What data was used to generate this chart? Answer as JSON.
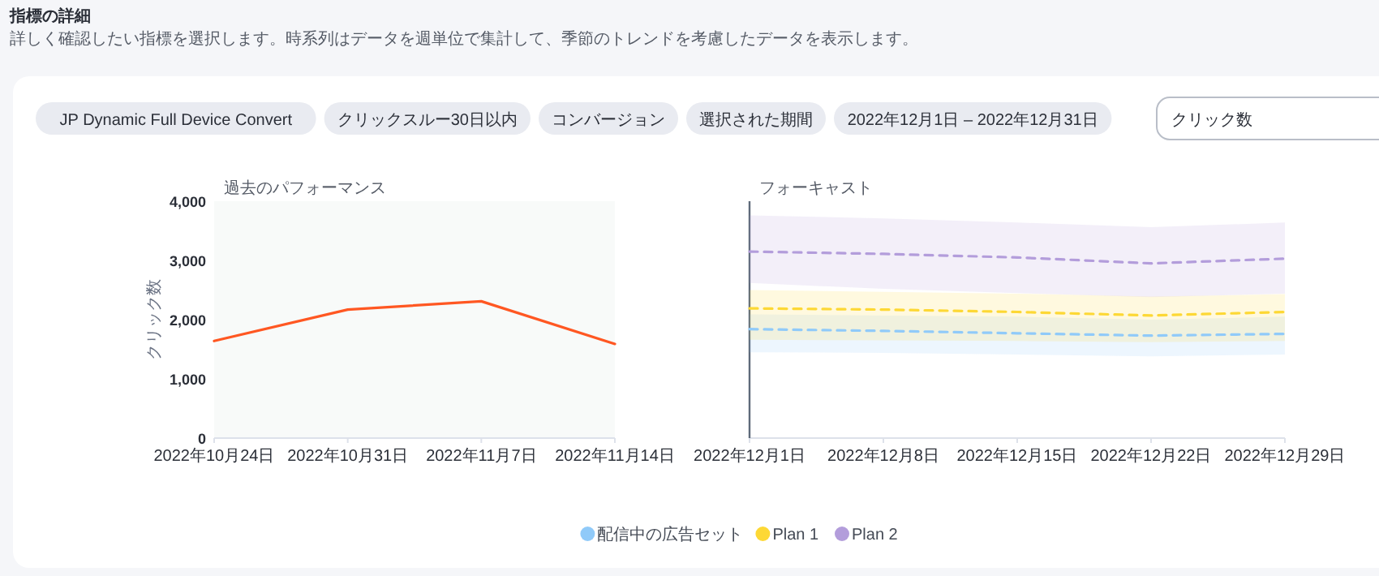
{
  "chart_data": [
    {
      "type": "other",
      "title": "指標の詳細",
      "subtitle": "詳しく確認したい指標を選択します。時系列はデータを週単位で集計して、季節のトレンドを考慮したデータを表示します。",
      "annotations": [
        "JP Dynamic Full Device Convert",
        "クリックスルー30日以内",
        "コンバージョン",
        "選択された期間",
        "2022年12月1日 – 2022年12月31日",
        "クリック数"
      ]
    },
    {
      "type": "line",
      "title": "過去のパフォーマンス",
      "ylabel": "クリック数",
      "x": [
        "2022-10-24",
        "2022-10-31",
        "2022-11-07",
        "2022-11-14"
      ],
      "series": [
        {
          "color": "#ff5722",
          "values": [
            1640,
            2170,
            2310,
            1590
          ]
        }
      ],
      "xlim": [
        "2022-10-24",
        "2022-11-14"
      ],
      "xticks": [
        {
          "value": "2022-10-24",
          "label": "2022年10月24日"
        },
        {
          "value": "2022-10-31",
          "label": "2022年10月31日"
        },
        {
          "value": "2022-11-07",
          "label": "2022年11月7日"
        },
        {
          "value": "2022-11-14",
          "label": "2022年11月14日"
        }
      ],
      "ylim": [
        0,
        4000
      ],
      "yticks": [
        0,
        {
          "value": 1000,
          "label": "1,000"
        },
        {
          "value": 2000,
          "label": "2,000"
        },
        {
          "value": 3000,
          "label": "3,000"
        },
        {
          "value": 4000,
          "label": "4,000"
        }
      ],
      "line_style": "solid",
      "grid": false,
      "legend": false
    },
    {
      "type": "line",
      "title": "フォーキャスト",
      "x": [
        "2022-12-01",
        "2022-12-08",
        "2022-12-15",
        "2022-12-22",
        "2022-12-29"
      ],
      "series": [
        {
          "name": "配信中の広告セット",
          "color": "#90caf9",
          "values": [
            1840,
            1810,
            1770,
            1730,
            1760
          ],
          "lower": [
            1450,
            1440,
            1410,
            1380,
            1410
          ],
          "upper": [
            2090,
            2070,
            2050,
            2000,
            2050
          ]
        },
        {
          "name": "Plan 1",
          "color": "#fdd835",
          "values": [
            2190,
            2170,
            2130,
            2070,
            2130
          ],
          "lower": [
            1660,
            1650,
            1640,
            1620,
            1640
          ],
          "upper": [
            2500,
            2470,
            2440,
            2390,
            2430
          ]
        },
        {
          "name": "Plan 2",
          "color": "#b39ddb",
          "values": [
            3150,
            3110,
            3050,
            2950,
            3030
          ],
          "lower": [
            2620,
            2520,
            2450,
            2380,
            2440
          ],
          "upper": [
            3760,
            3710,
            3640,
            3560,
            3640
          ]
        }
      ],
      "xlim": [
        "2022-12-01",
        "2022-12-29"
      ],
      "xticks": [
        {
          "value": "2022-12-01",
          "label": "2022年12月1日"
        },
        {
          "value": "2022-12-08",
          "label": "2022年12月8日"
        },
        {
          "value": "2022-12-15",
          "label": "2022年12月15日"
        },
        {
          "value": "2022-12-22",
          "label": "2022年12月22日"
        },
        {
          "value": "2022-12-29",
          "label": "2022年12月29日"
        }
      ],
      "ylim": [
        0,
        4000
      ],
      "tick_labels": "x",
      "line_style": "dashed",
      "grid": false,
      "legend": "bottom"
    }
  ]
}
